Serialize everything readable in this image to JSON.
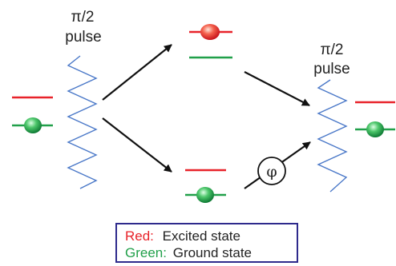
{
  "diagram": {
    "pulse_left": {
      "symbol": "π/2",
      "word": "pulse"
    },
    "pulse_right": {
      "symbol": "π/2",
      "word": "pulse"
    },
    "phase_symbol": "φ"
  },
  "legend": {
    "red_key": "Red:",
    "red_value": "Excited state",
    "green_key": "Green:",
    "green_value": "Ground state"
  },
  "colors": {
    "excited": "#e8232a",
    "ground": "#21a04a",
    "pulse": "#4a78c8",
    "legend_border": "#2e2a8c",
    "arrow": "#111111"
  }
}
